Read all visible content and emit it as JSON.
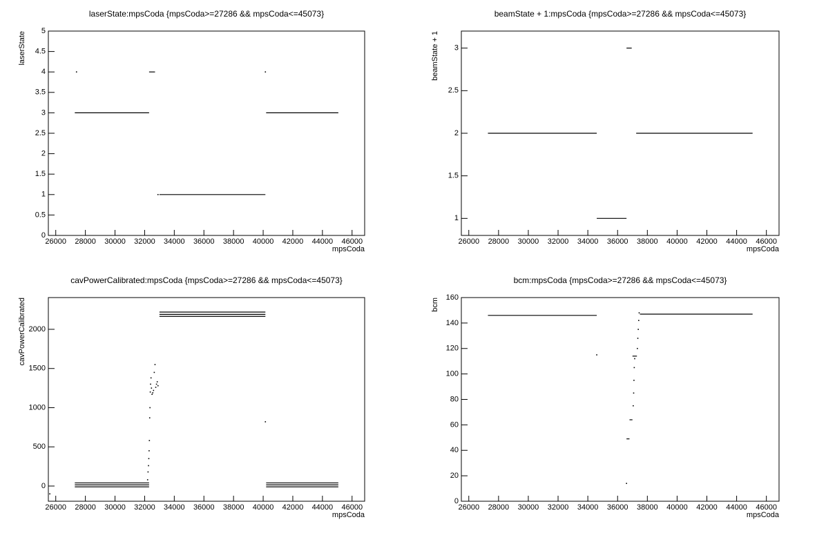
{
  "chart_data": [
    {
      "type": "scatter",
      "title": "laserState:mpsCoda {mpsCoda>=27286 && mpsCoda<=45073}",
      "x_label": "mpsCoda",
      "y_label": "laserState",
      "color": "#000000",
      "xlim": [
        25500,
        46850
      ],
      "xticks": [
        26000,
        28000,
        30000,
        32000,
        34000,
        36000,
        38000,
        40000,
        42000,
        44000,
        46000
      ],
      "ylim": [
        0,
        5
      ],
      "yticks": [
        0,
        0.5,
        1,
        1.5,
        2,
        2.5,
        3,
        3.5,
        4,
        4.5,
        5
      ],
      "runs": [
        {
          "x": [
            27286,
            32300
          ],
          "y": 3
        },
        {
          "x": [
            32300,
            32700
          ],
          "y": 4
        },
        {
          "x": [
            33000,
            40150
          ],
          "y": 1
        },
        {
          "x": [
            40200,
            45073
          ],
          "y": 3
        }
      ],
      "points": {
        "x": [
          27400,
          32900,
          40150
        ],
        "y": [
          4,
          1,
          4
        ]
      }
    },
    {
      "type": "scatter",
      "title": "beamState + 1:mpsCoda {mpsCoda>=27286 && mpsCoda<=45073}",
      "x_label": "mpsCoda",
      "y_label": "beamState + 1",
      "color": "#000000",
      "xlim": [
        25500,
        46850
      ],
      "xticks": [
        26000,
        28000,
        30000,
        32000,
        34000,
        36000,
        38000,
        40000,
        42000,
        44000,
        46000
      ],
      "ylim": [
        0.8,
        3.2
      ],
      "yticks": [
        1,
        1.5,
        2,
        2.5,
        3
      ],
      "runs": [
        {
          "x": [
            27286,
            34600
          ],
          "y": 2
        },
        {
          "x": [
            34600,
            36600
          ],
          "y": 1
        },
        {
          "x": [
            36600,
            36950
          ],
          "y": 3
        },
        {
          "x": [
            37250,
            45073
          ],
          "y": 2
        }
      ],
      "points": {
        "x": [],
        "y": []
      }
    },
    {
      "type": "scatter",
      "title": "cavPowerCalibrated:mpsCoda {mpsCoda>=27286 && mpsCoda<=45073}",
      "x_label": "mpsCoda",
      "y_label": "cavPowerCalibrated",
      "color": "#000000",
      "xlim": [
        25500,
        46850
      ],
      "xticks": [
        26000,
        28000,
        30000,
        32000,
        34000,
        36000,
        38000,
        40000,
        42000,
        44000,
        46000
      ],
      "ylim": [
        -194,
        2405
      ],
      "yticks": [
        0,
        500,
        1000,
        1500,
        2000
      ],
      "runs": [
        {
          "x": [
            27286,
            32300
          ],
          "y": 40
        },
        {
          "x": [
            27286,
            32300
          ],
          "y": 15
        },
        {
          "x": [
            27286,
            32300
          ],
          "y": -10
        },
        {
          "x": [
            33000,
            40150
          ],
          "y": 2220
        },
        {
          "x": [
            33000,
            40150
          ],
          "y": 2190
        },
        {
          "x": [
            33000,
            40150
          ],
          "y": 2165
        },
        {
          "x": [
            40200,
            45073
          ],
          "y": 40
        },
        {
          "x": [
            40200,
            45073
          ],
          "y": 15
        },
        {
          "x": [
            40200,
            45073
          ],
          "y": -10
        }
      ],
      "points": {
        "x": [
          25600,
          32200,
          32230,
          32260,
          32280,
          32300,
          32320,
          32340,
          32360,
          32380,
          32400,
          32430,
          32460,
          32500,
          32550,
          32600,
          32650,
          32700,
          32750,
          32800,
          32850,
          32900,
          40150
        ],
        "y": [
          -100,
          80,
          180,
          260,
          350,
          450,
          580,
          870,
          1000,
          1200,
          1300,
          1380,
          1250,
          1170,
          1190,
          1220,
          1450,
          1550,
          1260,
          1300,
          1330,
          1280,
          820
        ]
      }
    },
    {
      "type": "scatter",
      "title": "bcm:mpsCoda {mpsCoda>=27286 && mpsCoda<=45073}",
      "x_label": "mpsCoda",
      "y_label": "bcm",
      "color": "#000000",
      "xlim": [
        25500,
        46850
      ],
      "xticks": [
        26000,
        28000,
        30000,
        32000,
        34000,
        36000,
        38000,
        40000,
        42000,
        44000,
        46000
      ],
      "ylim": [
        0,
        160
      ],
      "yticks": [
        0,
        20,
        40,
        60,
        80,
        100,
        120,
        140,
        160
      ],
      "runs": [
        {
          "x": [
            27286,
            34600
          ],
          "y": 146
        },
        {
          "x": [
            36600,
            36800
          ],
          "y": 49
        },
        {
          "x": [
            36800,
            37000
          ],
          "y": 64
        },
        {
          "x": [
            37000,
            37300
          ],
          "y": 114
        },
        {
          "x": [
            37500,
            45073
          ],
          "y": 147
        }
      ],
      "points": {
        "x": [
          34600,
          36600,
          37050,
          37080,
          37100,
          37120,
          37150,
          37330,
          37360,
          37390,
          37420,
          37450
        ],
        "y": [
          115,
          14,
          75,
          85,
          95,
          105,
          112,
          120,
          128,
          135,
          142,
          148
        ]
      }
    }
  ]
}
